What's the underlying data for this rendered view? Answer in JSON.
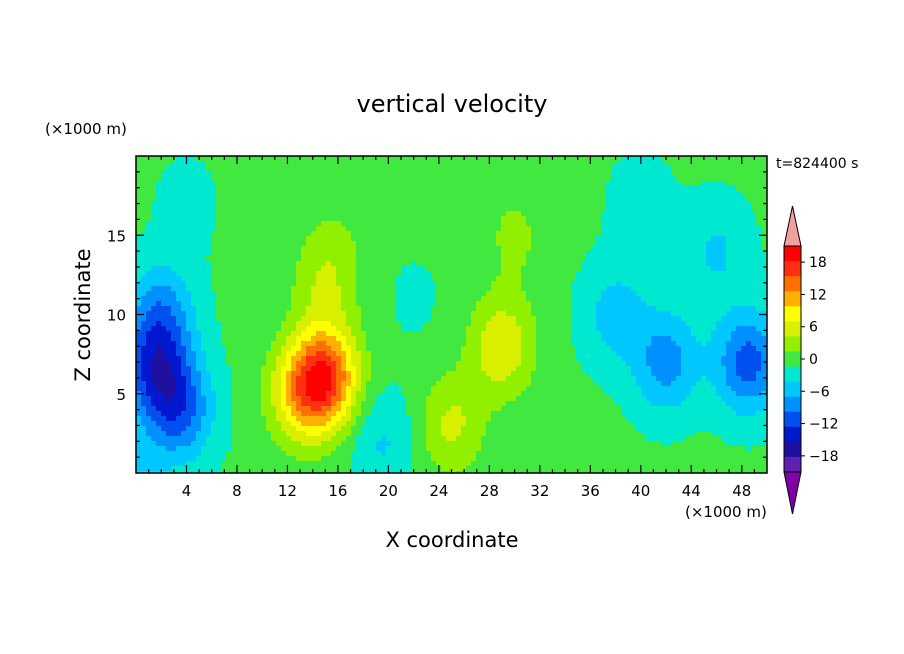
{
  "chart_data": {
    "type": "heatmap",
    "title": "vertical velocity",
    "xlabel": "X coordinate",
    "ylabel": "Z coordinate",
    "x_unit": "(×1000 m)",
    "y_unit": "(×1000 m)",
    "time_label": "t=824400 s",
    "xlim": [
      0,
      50
    ],
    "ylim": [
      0,
      20
    ],
    "x_ticks": [
      4,
      8,
      12,
      16,
      20,
      24,
      28,
      32,
      36,
      40,
      44,
      48
    ],
    "y_ticks": [
      5,
      10,
      15
    ],
    "colorbar": {
      "levels": [
        -21,
        -18,
        -15,
        -12,
        -9,
        -6,
        -3,
        0,
        3,
        6,
        9,
        12,
        15,
        18,
        21
      ],
      "tick_labels": [
        "18",
        "12",
        "6",
        "0",
        "−6",
        "−12",
        "−18"
      ],
      "tick_values": [
        18,
        12,
        6,
        0,
        -6,
        -12,
        -18
      ],
      "colors": [
        "#8000a8",
        "#6020b0",
        "#2010a0",
        "#0018d0",
        "#0050f0",
        "#0090ff",
        "#00c8ff",
        "#00e8d0",
        "#40e840",
        "#90f000",
        "#d8f000",
        "#ffff00",
        "#ffb000",
        "#ff7000",
        "#ff3010",
        "#ff0000",
        "#f0a0a0"
      ]
    },
    "features": [
      {
        "x": 0,
        "z": 0,
        "w": -3
      },
      {
        "x": 1.5,
        "z": 6.5,
        "w": -11
      },
      {
        "x": 3.5,
        "z": 4,
        "w": -10
      },
      {
        "x": 2,
        "z": 10,
        "w": -8
      },
      {
        "x": 4,
        "z": 17,
        "w": -1.5
      },
      {
        "x": 15,
        "z": 6,
        "w": 18
      },
      {
        "x": 13,
        "z": 5,
        "w": 9
      },
      {
        "x": 15,
        "z": 12,
        "w": 5
      },
      {
        "x": 16,
        "z": 15,
        "w": 1.5
      },
      {
        "x": 19.5,
        "z": 2,
        "w": -4
      },
      {
        "x": 22,
        "z": 11,
        "w": -1
      },
      {
        "x": 25,
        "z": 3,
        "w": 6
      },
      {
        "x": 29,
        "z": 8,
        "w": 8
      },
      {
        "x": 30,
        "z": 15,
        "w": 3
      },
      {
        "x": 42,
        "z": 7,
        "w": -8
      },
      {
        "x": 38,
        "z": 10,
        "w": -5
      },
      {
        "x": 48.5,
        "z": 7,
        "w": -11
      },
      {
        "x": 46,
        "z": 14,
        "w": -4
      },
      {
        "x": 40,
        "z": 17,
        "w": -2
      }
    ]
  }
}
